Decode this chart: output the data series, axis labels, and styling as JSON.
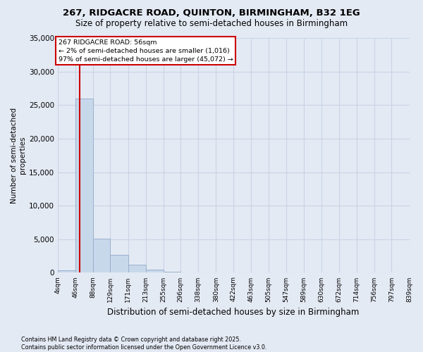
{
  "title": "267, RIDGACRE ROAD, QUINTON, BIRMINGHAM, B32 1EG",
  "subtitle": "Size of property relative to semi-detached houses in Birmingham",
  "xlabel": "Distribution of semi-detached houses by size in Birmingham",
  "ylabel": "Number of semi-detached\nproperties",
  "footnote": "Contains HM Land Registry data © Crown copyright and database right 2025.\nContains public sector information licensed under the Open Government Licence v3.0.",
  "bins": [
    4,
    46,
    88,
    129,
    171,
    213,
    255,
    296,
    338,
    380,
    422,
    463,
    505,
    547,
    589,
    630,
    672,
    714,
    756,
    797,
    839
  ],
  "values": [
    400,
    26000,
    5100,
    2650,
    1200,
    450,
    200,
    80,
    40,
    20,
    10,
    5,
    3,
    2,
    1,
    1,
    1,
    0,
    0,
    0
  ],
  "bar_color": "#c8d8eb",
  "bar_edge_color": "#9ab0cc",
  "grid_color": "#c8d4e4",
  "bg_color": "#e4eaf4",
  "property_line_x": 56,
  "property_line_color": "#cc0000",
  "annotation_text": "267 RIDGACRE ROAD: 56sqm\n← 2% of semi-detached houses are smaller (1,016)\n97% of semi-detached houses are larger (45,072) →",
  "annotation_box_color": "#cc0000",
  "ylim": [
    0,
    35000
  ],
  "yticks": [
    0,
    5000,
    10000,
    15000,
    20000,
    25000,
    30000,
    35000
  ]
}
